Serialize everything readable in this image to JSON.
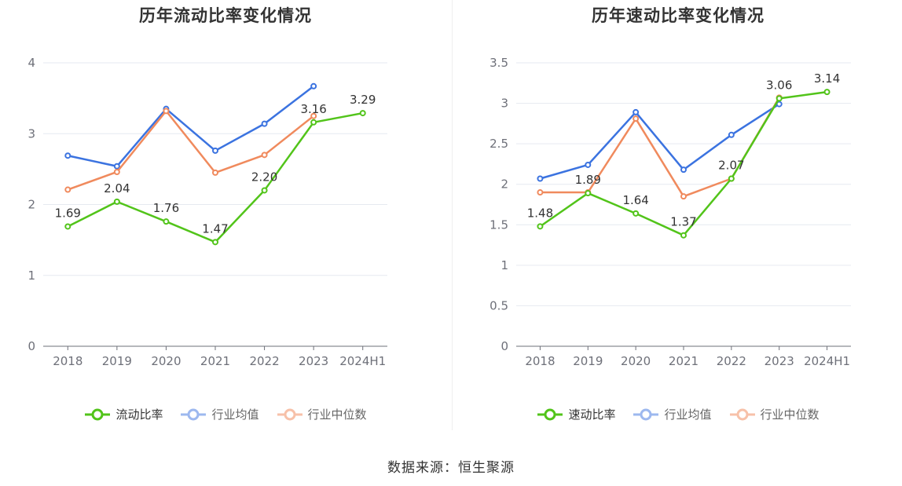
{
  "source": "数据来源：恒生聚源",
  "chart_data": [
    {
      "type": "line",
      "title": "历年流动比率变化情况",
      "categories": [
        "2018",
        "2019",
        "2020",
        "2021",
        "2022",
        "2023",
        "2024H1"
      ],
      "ylim": [
        0,
        4
      ],
      "yticks": [
        "0",
        "1",
        "2",
        "3",
        "4"
      ],
      "grid": true,
      "legend_position": "bottom",
      "series": [
        {
          "name": "流动比率",
          "color": "#52c41a",
          "values": [
            1.69,
            2.04,
            1.76,
            1.47,
            2.2,
            3.16,
            3.29
          ],
          "labels": [
            "1.69",
            "2.04",
            "1.76",
            "1.47",
            "2.20",
            "3.16",
            "3.29"
          ]
        },
        {
          "name": "行业均值",
          "color": "#3b73e0",
          "values": [
            2.69,
            2.54,
            3.35,
            2.76,
            3.14,
            3.67,
            null
          ]
        },
        {
          "name": "行业中位数",
          "color": "#f08a5d",
          "values": [
            2.21,
            2.46,
            3.32,
            2.45,
            2.7,
            3.25,
            null
          ]
        }
      ]
    },
    {
      "type": "line",
      "title": "历年速动比率变化情况",
      "categories": [
        "2018",
        "2019",
        "2020",
        "2021",
        "2022",
        "2023",
        "2024H1"
      ],
      "ylim": [
        0,
        3.5
      ],
      "yticks": [
        "0",
        "0.5",
        "1",
        "1.5",
        "2",
        "2.5",
        "3",
        "3.5"
      ],
      "grid": true,
      "legend_position": "bottom",
      "series": [
        {
          "name": "速动比率",
          "color": "#52c41a",
          "values": [
            1.48,
            1.89,
            1.64,
            1.37,
            2.07,
            3.06,
            3.14
          ],
          "labels": [
            "1.48",
            "1.89",
            "1.64",
            "1.37",
            "2.07",
            "3.06",
            "3.14"
          ]
        },
        {
          "name": "行业均值",
          "color": "#3b73e0",
          "values": [
            2.07,
            2.24,
            2.89,
            2.18,
            2.61,
            2.99,
            null
          ]
        },
        {
          "name": "行业中位数",
          "color": "#f08a5d",
          "values": [
            1.9,
            1.9,
            2.81,
            1.85,
            2.07,
            3.07,
            null
          ]
        }
      ]
    }
  ]
}
